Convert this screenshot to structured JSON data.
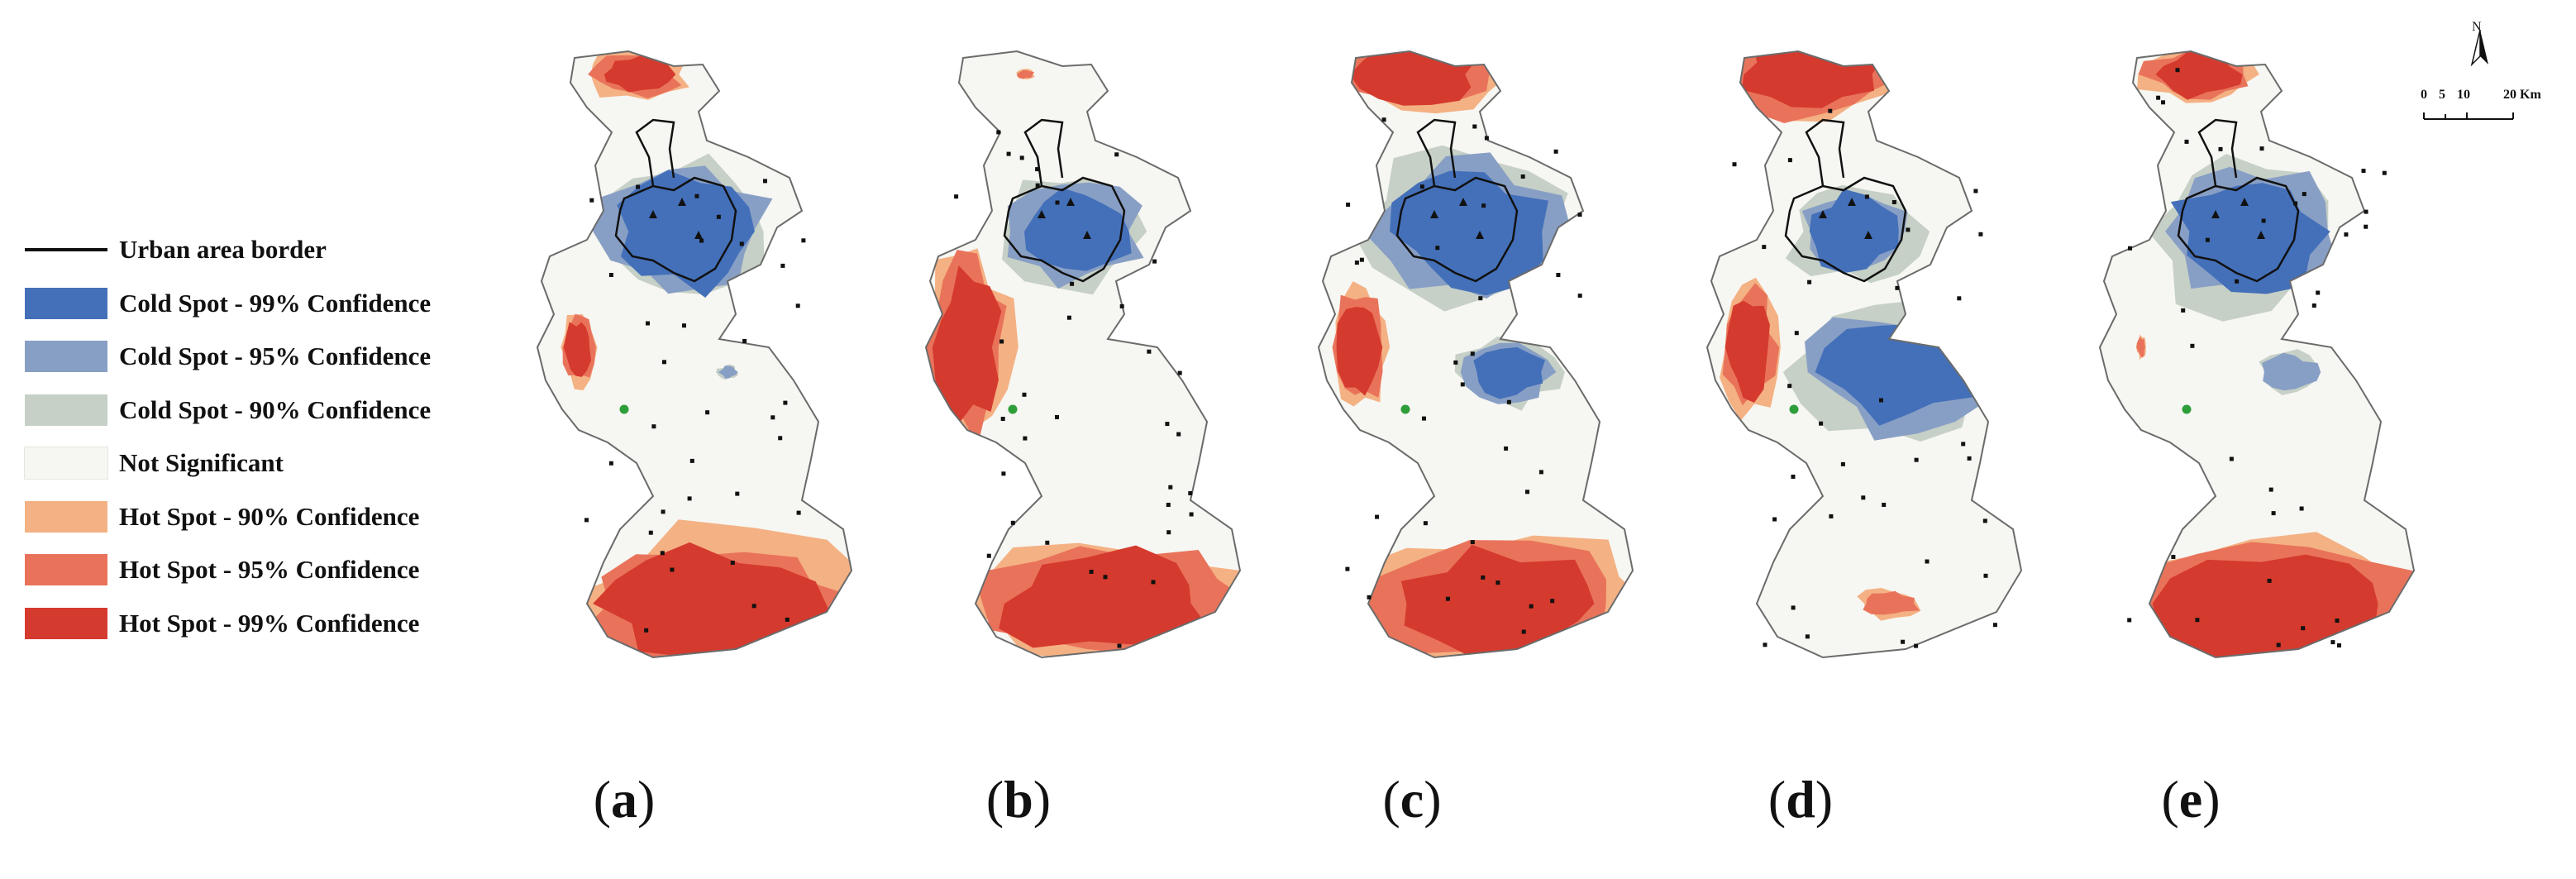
{
  "legend": {
    "items": [
      {
        "label": "Urban area border",
        "kind": "line",
        "color": "#111111"
      },
      {
        "label": "Cold Spot - 99% Confidence",
        "kind": "swatch",
        "color": "#4470b9"
      },
      {
        "label": "Cold Spot - 95% Confidence",
        "kind": "swatch",
        "color": "#889fc5"
      },
      {
        "label": "Cold Spot - 90% Confidence",
        "kind": "swatch",
        "color": "#c6d0c6"
      },
      {
        "label": "Not Significant",
        "kind": "swatch",
        "color": "#f6f6f2"
      },
      {
        "label": "Hot Spot - 90% Confidence",
        "kind": "swatch",
        "color": "#f4b183"
      },
      {
        "label": "Hot Spot - 95% Confidence",
        "kind": "swatch",
        "color": "#e9735a"
      },
      {
        "label": "Hot Spot - 99% Confidence",
        "kind": "swatch",
        "color": "#d53a2e"
      }
    ]
  },
  "panels": [
    {
      "label": "a",
      "north_hot": 0.5,
      "south_hot": 0.95,
      "west_hot": 0.35,
      "cold_center": 0.9,
      "cold_south": 0.1
    },
    {
      "label": "b",
      "north_hot": 0.1,
      "south_hot": 0.9,
      "west_hot": 0.9,
      "cold_center": 0.7,
      "cold_south": 0.05
    },
    {
      "label": "c",
      "north_hot": 0.8,
      "south_hot": 0.9,
      "west_hot": 0.6,
      "cold_center": 0.95,
      "cold_south": 0.5
    },
    {
      "label": "d",
      "north_hot": 1.0,
      "south_hot": 0.2,
      "west_hot": 0.6,
      "cold_center": 0.6,
      "cold_south": 1.0
    },
    {
      "label": "e",
      "north_hot": 0.6,
      "south_hot": 1.0,
      "west_hot": 0.1,
      "cold_center": 0.95,
      "cold_south": 0.3
    }
  ],
  "scale_bar": {
    "ticks": [
      "0",
      "5",
      "10",
      "20 Km"
    ],
    "north_label": "N"
  },
  "colors": {
    "outline": "#6b6b6b",
    "urban_border": "#111111",
    "point": "#111111",
    "station": "#2e9e3a"
  }
}
